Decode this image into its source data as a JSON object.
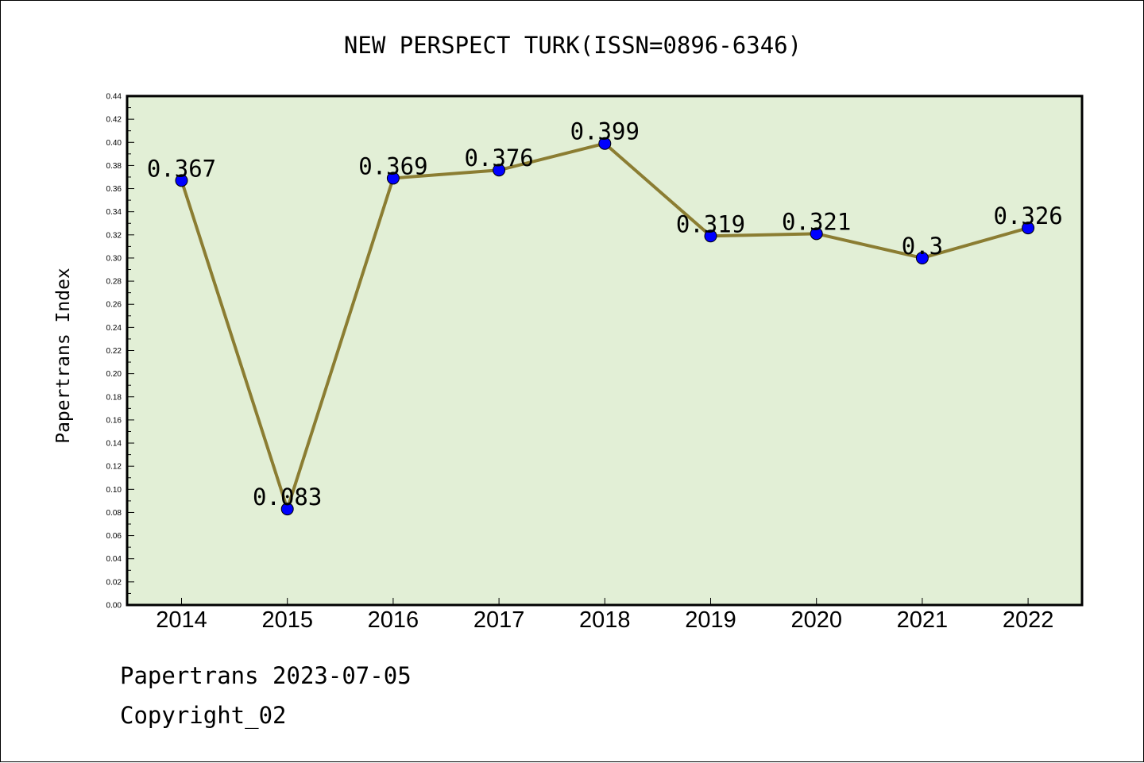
{
  "chart_data": {
    "type": "line",
    "title": "NEW PERSPECT TURK(ISSN=0896-6346)",
    "xlabel": "",
    "ylabel": "Papertrans Index",
    "categories": [
      "2014",
      "2015",
      "2016",
      "2017",
      "2018",
      "2019",
      "2020",
      "2021",
      "2022"
    ],
    "series": [
      {
        "values": [
          0.367,
          0.083,
          0.369,
          0.376,
          0.399,
          0.319,
          0.321,
          0.3,
          0.326
        ],
        "labels": [
          "0.367",
          "0.083",
          "0.369",
          "0.376",
          "0.399",
          "0.319",
          "0.321",
          "0.3",
          "0.326"
        ]
      }
    ],
    "ylim": [
      0,
      0.44
    ],
    "yticks": [
      "0.00",
      "0.02",
      "0.04",
      "0.06",
      "0.08",
      "0.10",
      "0.12",
      "0.14",
      "0.16",
      "0.18",
      "0.20",
      "0.22",
      "0.24",
      "0.26",
      "0.28",
      "0.30",
      "0.32",
      "0.34",
      "0.36",
      "0.38",
      "0.40",
      "0.42",
      "0.44"
    ],
    "grid": false,
    "colors": {
      "plot_background": "#e2efd6",
      "line": "#8b7d32",
      "marker": "#0000ff"
    }
  },
  "footer": {
    "line1": "Papertrans 2023-07-05",
    "line2": "Copyright_02"
  }
}
